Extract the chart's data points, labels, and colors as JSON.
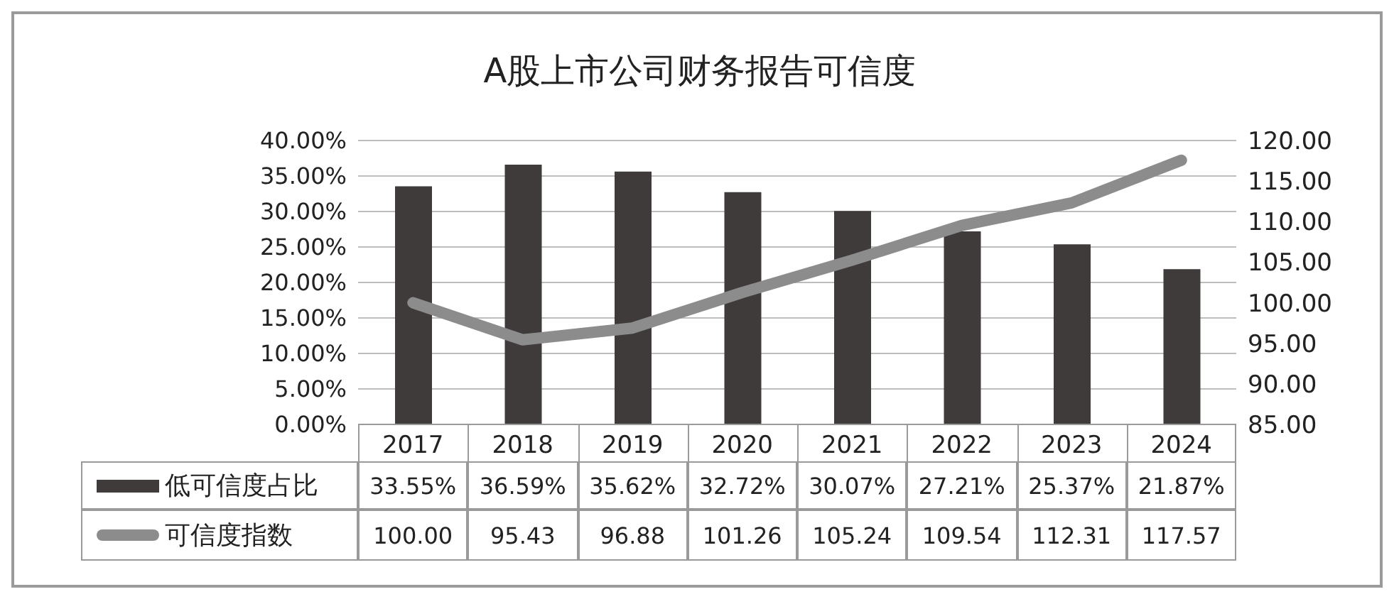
{
  "chart_data": {
    "type": "bar",
    "title": "A股上市公司财务报告可信度",
    "categories": [
      "2017",
      "2018",
      "2019",
      "2020",
      "2021",
      "2022",
      "2023",
      "2024"
    ],
    "series": [
      {
        "name": "低可信度占比",
        "color": "#3f3b3b",
        "values": [
          33.55,
          36.59,
          35.62,
          32.72,
          30.07,
          27.21,
          25.37,
          21.87
        ],
        "value_labels": [
          "33.55%",
          "36.59%",
          "35.62%",
          "32.72%",
          "30.07%",
          "27.21%",
          "25.37%",
          "21.87%"
        ]
      },
      {
        "type": "line",
        "name": "可信度指数",
        "color": "#8c8c8c",
        "axis": "y2",
        "values": [
          100.0,
          95.43,
          96.88,
          101.26,
          105.24,
          109.54,
          112.31,
          117.57
        ],
        "value_labels": [
          "100.00",
          "95.43",
          "96.88",
          "101.26",
          "105.24",
          "109.54",
          "112.31",
          "117.57"
        ]
      }
    ],
    "ylim": [
      0,
      40
    ],
    "yticks": [
      {
        "value": 0,
        "label": "0.00%"
      },
      {
        "value": 5,
        "label": "5.00%"
      },
      {
        "value": 10,
        "label": "10.00%"
      },
      {
        "value": 15,
        "label": "15.00%"
      },
      {
        "value": 20,
        "label": "20.00%"
      },
      {
        "value": 25,
        "label": "25.00%"
      },
      {
        "value": 30,
        "label": "30.00%"
      },
      {
        "value": 35,
        "label": "35.00%"
      },
      {
        "value": 40,
        "label": "40.00%"
      }
    ],
    "y2lim": [
      85,
      120
    ],
    "y2ticks": [
      {
        "value": 85,
        "label": "85.00"
      },
      {
        "value": 90,
        "label": "90.00"
      },
      {
        "value": 95,
        "label": "95.00"
      },
      {
        "value": 100,
        "label": "100.00"
      },
      {
        "value": 105,
        "label": "105.00"
      },
      {
        "value": 110,
        "label": "110.00"
      },
      {
        "value": 115,
        "label": "115.00"
      },
      {
        "value": 120,
        "label": "120.00"
      }
    ],
    "grid": "y",
    "legend": "bottom left",
    "marker": "none"
  }
}
